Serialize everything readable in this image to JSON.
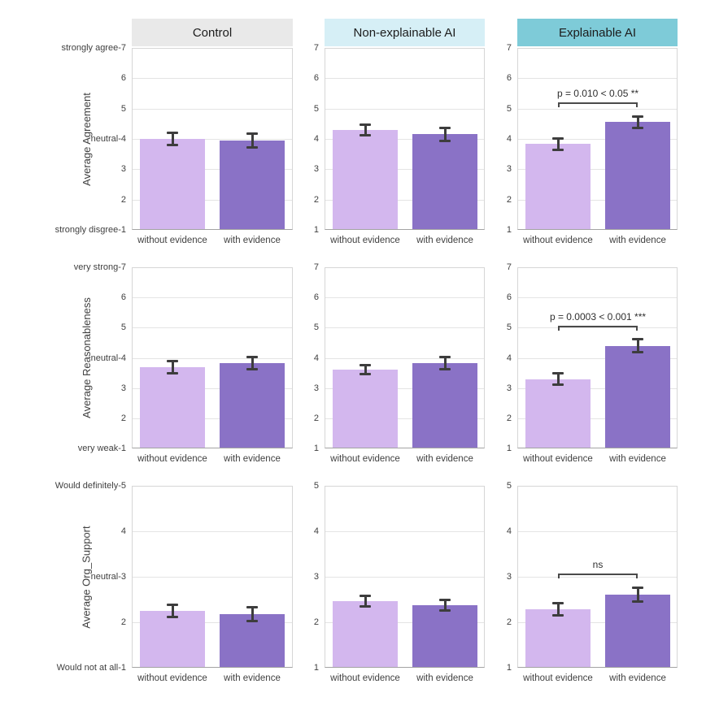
{
  "chart_data": {
    "type": "bar",
    "facet_columns": [
      "Control",
      "Non-explainable AI",
      "Explainable AI"
    ],
    "facet_header_colors": [
      "#e9e9e9",
      "#d6eff6",
      "#7ecbd8"
    ],
    "categories": [
      "without evidence",
      "with evidence"
    ],
    "bar_colors": [
      "#d3b7ee",
      "#8a72c6"
    ],
    "error_bar_color": "#3d3d3d",
    "grid": true,
    "legend": "none",
    "rows": [
      {
        "ylabel": "Average Agreement",
        "ylim": [
          1,
          7
        ],
        "ytick_text": {
          "1": "strongly disgree-1",
          "4": "neutral-4",
          "7": "strongly agree-7"
        },
        "panels": [
          {
            "column": "Control",
            "values": [
              4.0,
              3.95
            ],
            "errors": [
              0.2,
              0.22
            ]
          },
          {
            "column": "Non-explainable AI",
            "values": [
              4.3,
              4.15
            ],
            "errors": [
              0.18,
              0.22
            ]
          },
          {
            "column": "Explainable AI",
            "values": [
              3.83,
              4.55
            ],
            "errors": [
              0.18,
              0.2
            ],
            "annotation": {
              "text": "p = 0.010 < 0.05 **",
              "y": 5.2
            }
          }
        ]
      },
      {
        "ylabel": "Average Reasonableness",
        "ylim": [
          1,
          7
        ],
        "ytick_text": {
          "1": "very weak-1",
          "4": "neutral-4",
          "7": "very strong-7"
        },
        "panels": [
          {
            "column": "Control",
            "values": [
              3.7,
              3.82
            ],
            "errors": [
              0.2,
              0.2
            ]
          },
          {
            "column": "Non-explainable AI",
            "values": [
              3.62,
              3.83
            ],
            "errors": [
              0.15,
              0.2
            ]
          },
          {
            "column": "Explainable AI",
            "values": [
              3.3,
              4.4
            ],
            "errors": [
              0.2,
              0.22
            ],
            "annotation": {
              "text": "p = 0.0003 < 0.001 ***",
              "y": 5.05
            }
          }
        ]
      },
      {
        "ylabel": "Average Org_Support",
        "ylim": [
          1,
          5
        ],
        "ytick_text": {
          "1": "Would not at all-1",
          "3": "neutral-3",
          "5": "Would definitely-5"
        },
        "panels": [
          {
            "column": "Control",
            "values": [
              2.25,
              2.18
            ],
            "errors": [
              0.13,
              0.15
            ]
          },
          {
            "column": "Non-explainable AI",
            "values": [
              2.46,
              2.38
            ],
            "errors": [
              0.12,
              0.12
            ]
          },
          {
            "column": "Explainable AI",
            "values": [
              2.29,
              2.61
            ],
            "errors": [
              0.13,
              0.15
            ],
            "annotation": {
              "text": "ns",
              "y": 3.07
            }
          }
        ]
      }
    ]
  }
}
